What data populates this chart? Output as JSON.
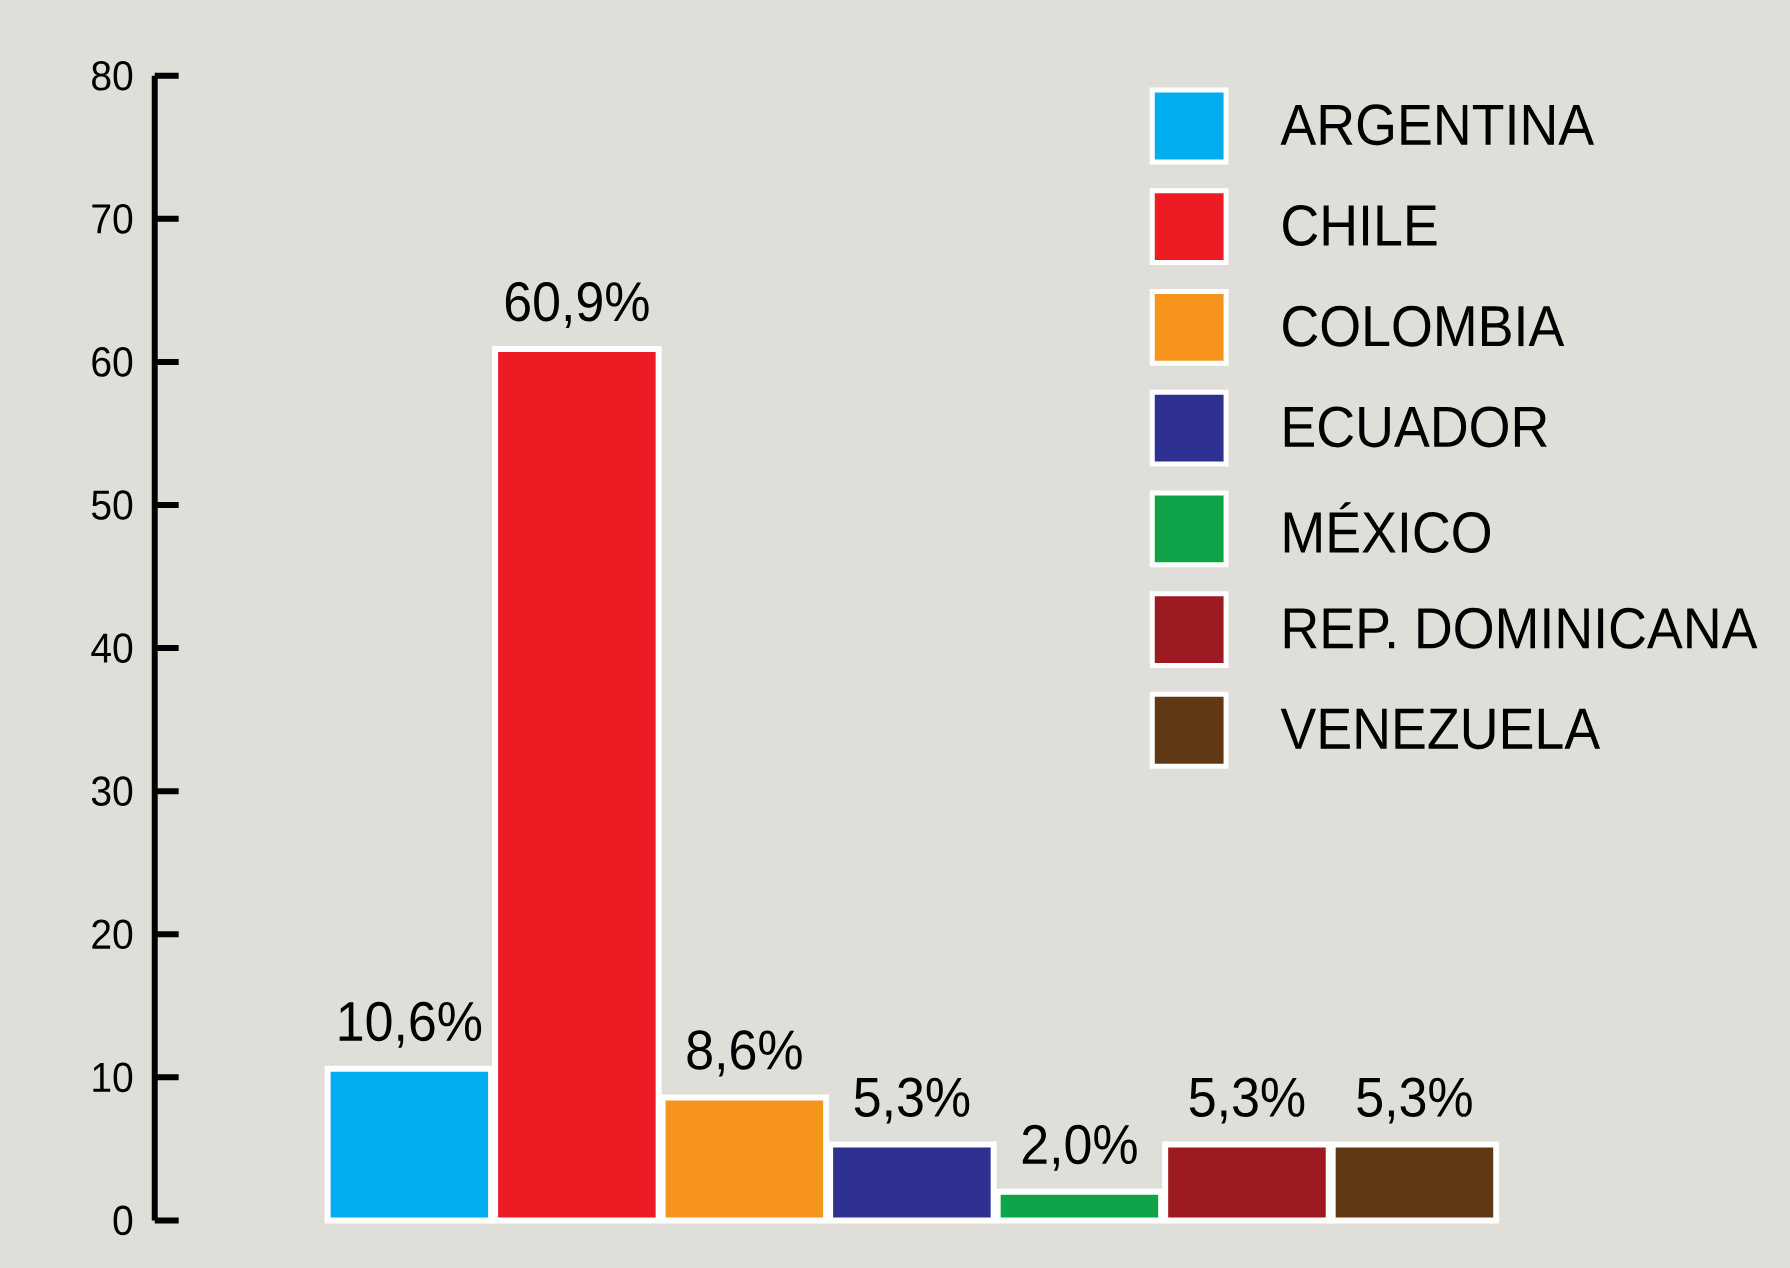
{
  "chart_data": {
    "type": "bar",
    "stacked": true,
    "categories": [
      null,
      null,
      null,
      null,
      null,
      null,
      null
    ],
    "series": [
      {
        "name": "ARGENTINA",
        "color": "#00aeef",
        "values": [
          10.6,
          null,
          null,
          null,
          null,
          null,
          null
        ],
        "value_labels": [
          "10,6%",
          null,
          null,
          null,
          null,
          null,
          null
        ]
      },
      {
        "name": "CHILE",
        "color": "#ed1c24",
        "values": [
          null,
          60.9,
          null,
          null,
          null,
          null,
          null
        ],
        "value_labels": [
          null,
          "60,9%",
          null,
          null,
          null,
          null,
          null
        ]
      },
      {
        "name": "COLOMBIA",
        "color": "#f7941d",
        "values": [
          null,
          null,
          8.6,
          null,
          null,
          null,
          null
        ],
        "value_labels": [
          null,
          null,
          "8,6%",
          null,
          null,
          null,
          null
        ]
      },
      {
        "name": "ECUADOR",
        "color": "#2e3192",
        "values": [
          null,
          null,
          null,
          5.3,
          null,
          null,
          null
        ],
        "value_labels": [
          null,
          null,
          null,
          "5,3%",
          null,
          null,
          null
        ]
      },
      {
        "name": "MÉXICO",
        "color": "#0fa44a",
        "values": [
          null,
          null,
          null,
          null,
          2.0,
          null,
          null
        ],
        "value_labels": [
          null,
          null,
          null,
          null,
          "2,0%",
          null,
          null
        ]
      },
      {
        "name": "REP. DOMINICANA",
        "color": "#9b1b20",
        "values": [
          null,
          null,
          null,
          null,
          null,
          5.3,
          null
        ],
        "value_labels": [
          null,
          null,
          null,
          null,
          null,
          "5,3%",
          null
        ]
      },
      {
        "name": "VENEZUELA",
        "color": "#603813",
        "values": [
          null,
          null,
          null,
          null,
          null,
          null,
          5.3
        ],
        "value_labels": [
          null,
          null,
          null,
          null,
          null,
          null,
          "5,3%"
        ]
      }
    ],
    "ylim": [
      0,
      80
    ],
    "yticks": [
      0,
      10,
      20,
      30,
      40,
      50,
      60,
      70,
      80
    ],
    "tick_labels": "y",
    "legend": "top right"
  }
}
